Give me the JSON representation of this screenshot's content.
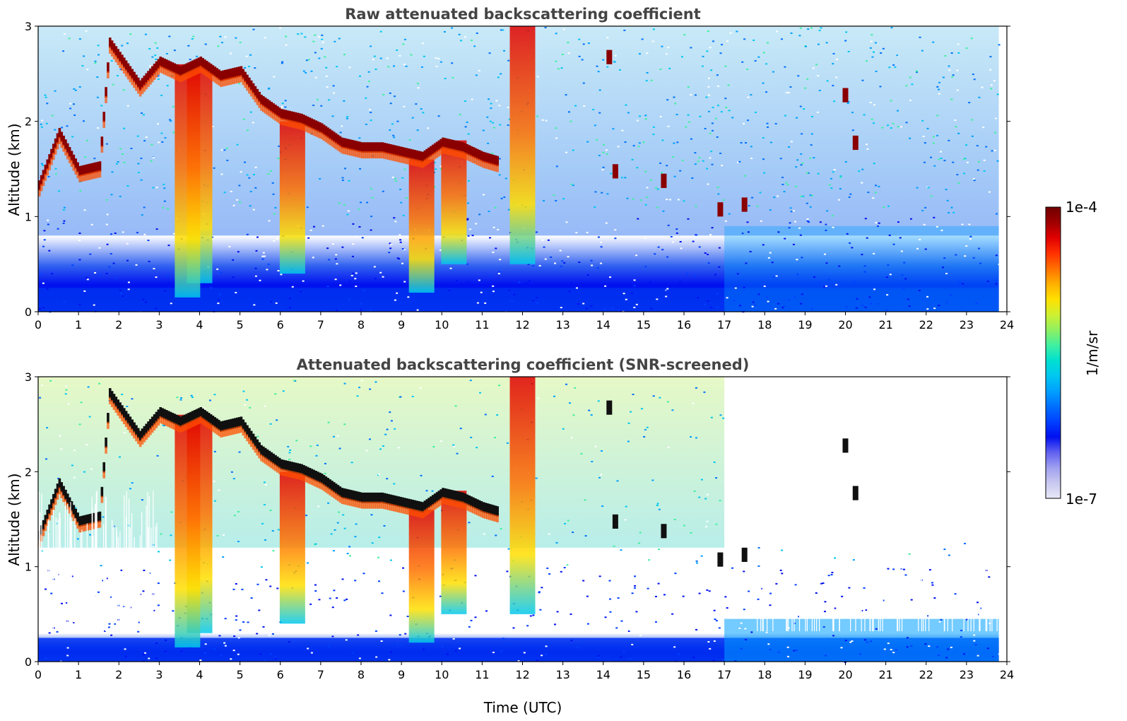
{
  "figure": {
    "xlabel": "Time (UTC)"
  },
  "colorbar": {
    "label": "1/m/sr",
    "max_label": "1e-4",
    "min_label": "1e-7",
    "colors": [
      "#e8e8f8",
      "#c8c8f0",
      "#a0a0f0",
      "#6060f0",
      "#0010f0",
      "#0040ff",
      "#0070ff",
      "#00a0ff",
      "#00c8f0",
      "#00e0d0",
      "#40f0a0",
      "#90f060",
      "#d0f030",
      "#ffe000",
      "#ffb000",
      "#ff7000",
      "#ff3000",
      "#e00000",
      "#a00000",
      "#700000"
    ]
  },
  "chart_data": [
    {
      "type": "heatmap",
      "title": "Raw attenuated backscattering coefficient",
      "xlabel": "",
      "ylabel": "Altitude (km)",
      "xlim": [
        0,
        24
      ],
      "ylim": [
        0,
        3
      ],
      "x_ticks": [
        "0",
        "1",
        "2",
        "3",
        "4",
        "5",
        "6",
        "7",
        "8",
        "9",
        "10",
        "11",
        "12",
        "13",
        "14",
        "15",
        "16",
        "17",
        "18",
        "19",
        "20",
        "21",
        "22",
        "23",
        "24"
      ],
      "y_ticks": [
        "0",
        "1",
        "2",
        "3"
      ],
      "data_end_hour": 23.8,
      "cloud_layer": [
        [
          0.0,
          1.3
        ],
        [
          0.5,
          1.85
        ],
        [
          1.0,
          1.45
        ],
        [
          1.5,
          1.5
        ],
        [
          1.75,
          2.8
        ],
        [
          2.5,
          2.35
        ],
        [
          3.0,
          2.6
        ],
        [
          3.5,
          2.5
        ],
        [
          4.0,
          2.6
        ],
        [
          4.5,
          2.45
        ],
        [
          5.0,
          2.5
        ],
        [
          5.5,
          2.2
        ],
        [
          6.0,
          2.05
        ],
        [
          6.5,
          2.0
        ],
        [
          7.0,
          1.9
        ],
        [
          7.5,
          1.75
        ],
        [
          8.0,
          1.7
        ],
        [
          8.5,
          1.7
        ],
        [
          9.0,
          1.65
        ],
        [
          9.5,
          1.6
        ],
        [
          10.0,
          1.75
        ],
        [
          10.5,
          1.7
        ],
        [
          11.0,
          1.6
        ],
        [
          11.4,
          1.55
        ]
      ],
      "high_clouds": [
        [
          14.15,
          2.6
        ],
        [
          20.0,
          2.2
        ],
        [
          20.25,
          1.7
        ],
        [
          14.3,
          1.4
        ],
        [
          15.5,
          1.3
        ],
        [
          16.9,
          1.0
        ],
        [
          17.5,
          1.05
        ]
      ],
      "plume_columns": [
        [
          4.0,
          0.3,
          2.6
        ],
        [
          6.3,
          0.4,
          2.0
        ],
        [
          9.5,
          0.2,
          1.6
        ],
        [
          12.0,
          0.5,
          3.0
        ],
        [
          10.3,
          0.5,
          1.8
        ],
        [
          3.7,
          0.15,
          2.6
        ]
      ]
    },
    {
      "type": "heatmap",
      "title": "Attenuated backscattering coefficient (SNR-screened)",
      "xlabel": "Time (UTC)",
      "ylabel": "Altitude (km)",
      "xlim": [
        0,
        24
      ],
      "ylim": [
        0,
        3
      ],
      "x_ticks": [
        "0",
        "1",
        "2",
        "3",
        "4",
        "5",
        "6",
        "7",
        "8",
        "9",
        "10",
        "11",
        "12",
        "13",
        "14",
        "15",
        "16",
        "17",
        "18",
        "19",
        "20",
        "21",
        "22",
        "23",
        "24"
      ],
      "y_ticks": [
        "0",
        "1",
        "2",
        "3"
      ],
      "data_end_hour": 23.8
    }
  ]
}
